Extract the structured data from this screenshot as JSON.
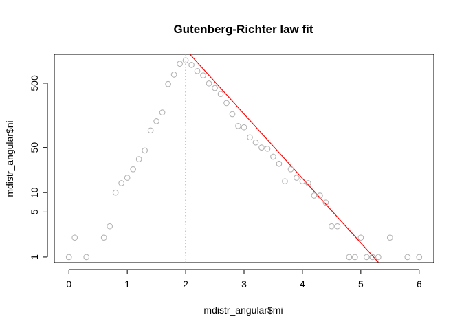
{
  "chart_data": {
    "type": "scatter",
    "title": "Gutenberg-Richter law fit",
    "xlabel": "mdistr_angular$mi",
    "ylabel": "mdistr_angular$ni",
    "xlim": [
      -0.25,
      6.25
    ],
    "ylim": [
      0.82,
      1400
    ],
    "y_scale": "log",
    "x_ticks": [
      0,
      1,
      2,
      3,
      4,
      5,
      6
    ],
    "y_ticks": [
      1,
      5,
      10,
      50,
      500
    ],
    "grid": false,
    "legend": "none",
    "colors": {
      "points": "#b3b3b3",
      "fit_line": "#ff0000",
      "cutoff_line": "#e07b5b",
      "frame": "#000000"
    },
    "x": [
      0.0,
      0.1,
      0.3,
      0.6,
      0.7,
      0.8,
      0.9,
      1.0,
      1.1,
      1.2,
      1.3,
      1.4,
      1.5,
      1.6,
      1.7,
      1.8,
      1.9,
      2.0,
      2.1,
      2.2,
      2.3,
      2.4,
      2.5,
      2.6,
      2.7,
      2.8,
      2.9,
      3.0,
      3.1,
      3.2,
      3.3,
      3.4,
      3.5,
      3.6,
      3.7,
      3.8,
      3.9,
      4.0,
      4.1,
      4.2,
      4.3,
      4.4,
      4.5,
      4.6,
      4.8,
      4.9,
      5.0,
      5.1,
      5.2,
      5.3,
      5.5,
      5.8,
      6.0
    ],
    "y": [
      1,
      2,
      1,
      2,
      3,
      10,
      14,
      17,
      23,
      33,
      45,
      92,
      128,
      175,
      485,
      680,
      1000,
      1130,
      960,
      770,
      660,
      495,
      420,
      340,
      245,
      165,
      108,
      103,
      72,
      60,
      50,
      48,
      36,
      28,
      15,
      23,
      17,
      15,
      14,
      9,
      9,
      7,
      3,
      3,
      1,
      1,
      2,
      1,
      1,
      1,
      2,
      1,
      1
    ],
    "fit_line": {
      "a": 5.22,
      "b": 1.0,
      "x_from": 1.88,
      "x_to": 5.3
    },
    "cutoff": {
      "x": 2.0
    }
  }
}
